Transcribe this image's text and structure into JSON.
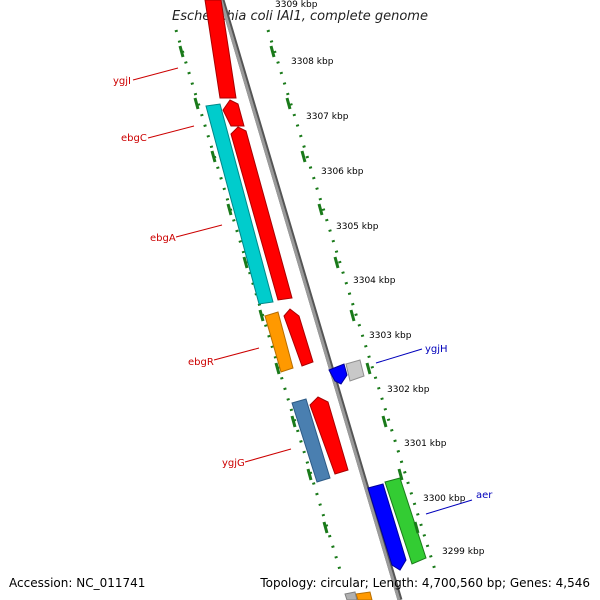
{
  "title": "Escherichia coli IAI1, complete genome",
  "footer": {
    "accession": "Accession: NC_011741",
    "summary": "Topology: circular; Length: 4,700,560 bp; Genes: 4,546"
  },
  "colors": {
    "backbone": "#808080",
    "ruler": "#1a7a1a",
    "label_left": "#cc0000",
    "label_right": "#0000bb"
  },
  "ticks": [
    {
      "label": "3309 kbp"
    },
    {
      "label": "3308 kbp"
    },
    {
      "label": "3307 kbp"
    },
    {
      "label": "3306 kbp"
    },
    {
      "label": "3305 kbp"
    },
    {
      "label": "3304 kbp"
    },
    {
      "label": "3303 kbp"
    },
    {
      "label": "3302 kbp"
    },
    {
      "label": "3301 kbp"
    },
    {
      "label": "3300 kbp"
    },
    {
      "label": "3299 kbp"
    }
  ],
  "genes": [
    {
      "name": "ygjI",
      "strand": "left"
    },
    {
      "name": "ebgC",
      "strand": "left"
    },
    {
      "name": "ebgA",
      "strand": "left"
    },
    {
      "name": "ebgR",
      "strand": "left"
    },
    {
      "name": "ygjG",
      "strand": "left"
    },
    {
      "name": "ygjH",
      "strand": "right"
    },
    {
      "name": "aer",
      "strand": "right"
    }
  ]
}
